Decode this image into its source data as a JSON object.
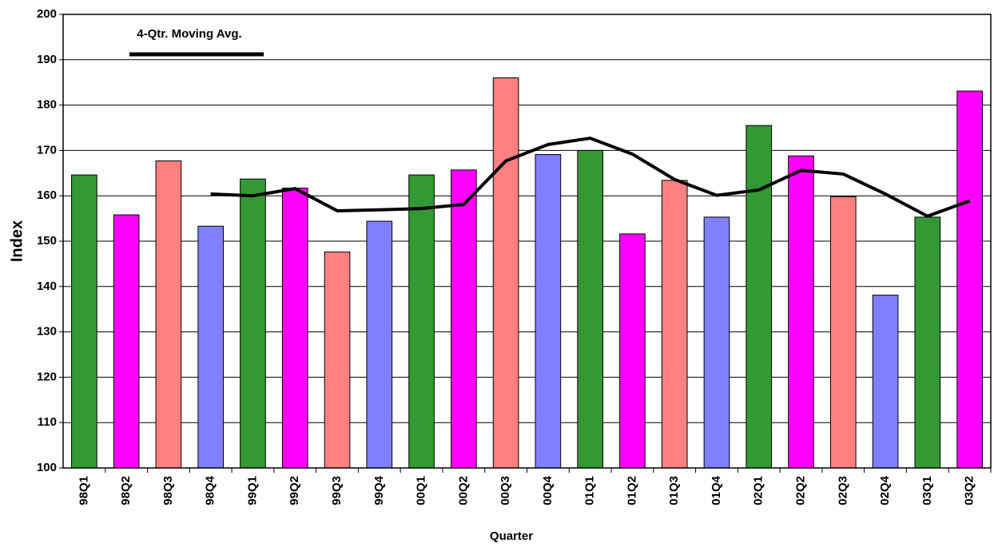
{
  "chart_data": {
    "type": "bar",
    "xlabel": "Quarter",
    "ylabel": "Index",
    "categories": [
      "98Q1",
      "98Q2",
      "98Q3",
      "98Q4",
      "99Q1",
      "99Q2",
      "99Q3",
      "99Q4",
      "00Q1",
      "00Q2",
      "00Q3",
      "00Q4",
      "01Q1",
      "01Q2",
      "01Q3",
      "01Q4",
      "02Q1",
      "02Q2",
      "02Q3",
      "02Q4",
      "03Q1",
      "03Q2"
    ],
    "values": [
      164.6,
      155.8,
      167.7,
      153.3,
      163.7,
      161.7,
      147.6,
      154.4,
      164.6,
      165.7,
      186.0,
      169.1,
      170.0,
      151.6,
      163.4,
      155.3,
      175.5,
      168.8,
      159.8,
      138.1,
      155.3,
      183.1
    ],
    "bar_colors": [
      "#339933",
      "#ff00ff",
      "#ff8080",
      "#8080ff",
      "#339933",
      "#ff00ff",
      "#ff8080",
      "#8080ff",
      "#339933",
      "#ff00ff",
      "#ff8080",
      "#8080ff",
      "#339933",
      "#ff00ff",
      "#ff8080",
      "#8080ff",
      "#339933",
      "#ff00ff",
      "#ff8080",
      "#8080ff",
      "#339933",
      "#ff00ff"
    ],
    "line": {
      "name": "4-Qtr. Moving Avg.",
      "color": "#000000",
      "values": [
        null,
        null,
        null,
        160.4,
        160.0,
        161.6,
        156.7,
        156.9,
        157.2,
        158.1,
        167.7,
        171.3,
        172.7,
        169.2,
        163.6,
        160.1,
        161.3,
        165.6,
        164.8,
        160.4,
        155.5,
        158.9
      ]
    },
    "ylim": [
      100,
      200
    ],
    "yticks": [
      100,
      110,
      120,
      130,
      140,
      150,
      160,
      170,
      180,
      190,
      200
    ],
    "grid": true,
    "legend": "top-left"
  }
}
